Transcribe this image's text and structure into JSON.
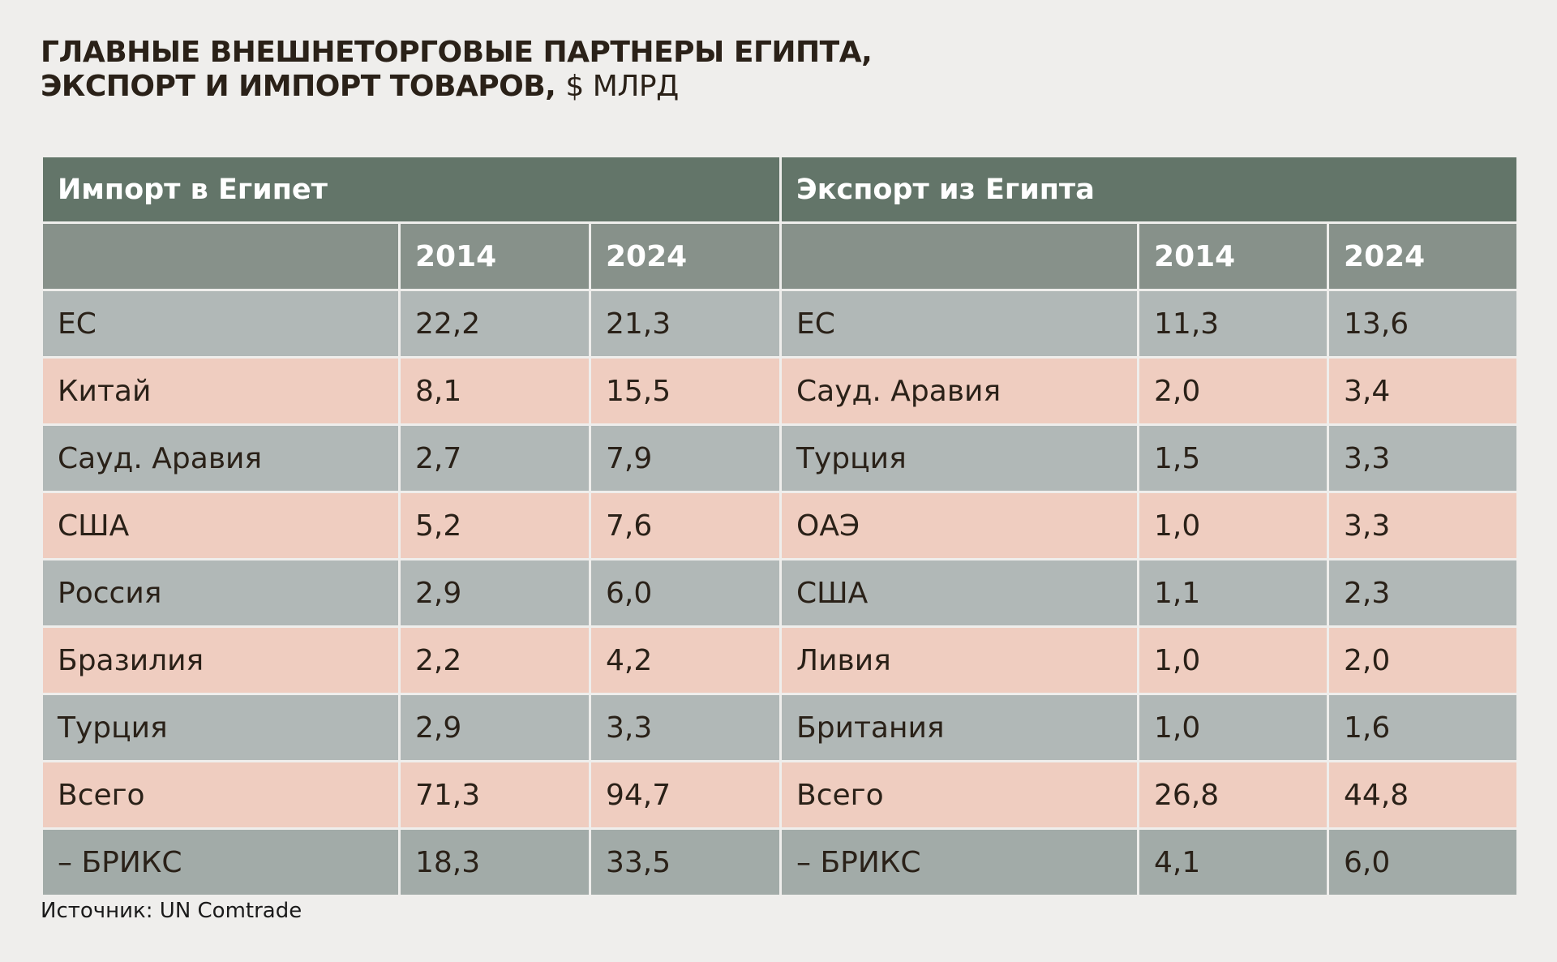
{
  "title": {
    "line1": "ГЛАВНЫЕ ВНЕШНЕТОРГОВЫЕ ПАРТНЕРЫ ЕГИПТА,",
    "line2": "ЭКСПОРТ И ИМПОРТ ТОВАРОВ,",
    "unit": "$ МЛРД"
  },
  "table": {
    "import_header": "Импорт в Египет",
    "export_header": "Экспорт из Египта",
    "years": [
      "2014",
      "2024"
    ],
    "rows": [
      {
        "imp": "ЕС",
        "i2014": "22,2",
        "i2024": "21,3",
        "exp": "ЕС",
        "e2014": "11,3",
        "e2024": "13,6"
      },
      {
        "imp": "Китай",
        "i2014": "8,1",
        "i2024": "15,5",
        "exp": "Сауд. Аравия",
        "e2014": "2,0",
        "e2024": "3,4"
      },
      {
        "imp": "Сауд. Аравия",
        "i2014": "2,7",
        "i2024": "7,9",
        "exp": "Турция",
        "e2014": "1,5",
        "e2024": "3,3"
      },
      {
        "imp": "США",
        "i2014": "5,2",
        "i2024": "7,6",
        "exp": "ОАЭ",
        "e2014": "1,0",
        "e2024": "3,3"
      },
      {
        "imp": "Россия",
        "i2014": "2,9",
        "i2024": "6,0",
        "exp": "США",
        "e2014": "1,1",
        "e2024": "2,3"
      },
      {
        "imp": "Бразилия",
        "i2014": "2,2",
        "i2024": "4,2",
        "exp": "Ливия",
        "e2014": "1,0",
        "e2024": "2,0"
      },
      {
        "imp": "Турция",
        "i2014": "2,9",
        "i2024": "3,3",
        "exp": "Британия",
        "e2014": "1,0",
        "e2024": "1,6"
      },
      {
        "imp": "Всего",
        "i2014": "71,3",
        "i2024": "94,7",
        "exp": "Всего",
        "e2014": "26,8",
        "e2024": "44,8"
      },
      {
        "imp": "– БРИКС",
        "i2014": "18,3",
        "i2024": "33,5",
        "exp": "– БРИКС",
        "e2014": "4,1",
        "e2024": "6,0"
      }
    ]
  },
  "colors": {
    "header": "#637569",
    "years_row": "#87918a",
    "gray_row": "#b1b8b7",
    "pink_row": "#efcdc0",
    "brics_row": "#a2aba8"
  },
  "source": "Источник: UN Comtrade"
}
